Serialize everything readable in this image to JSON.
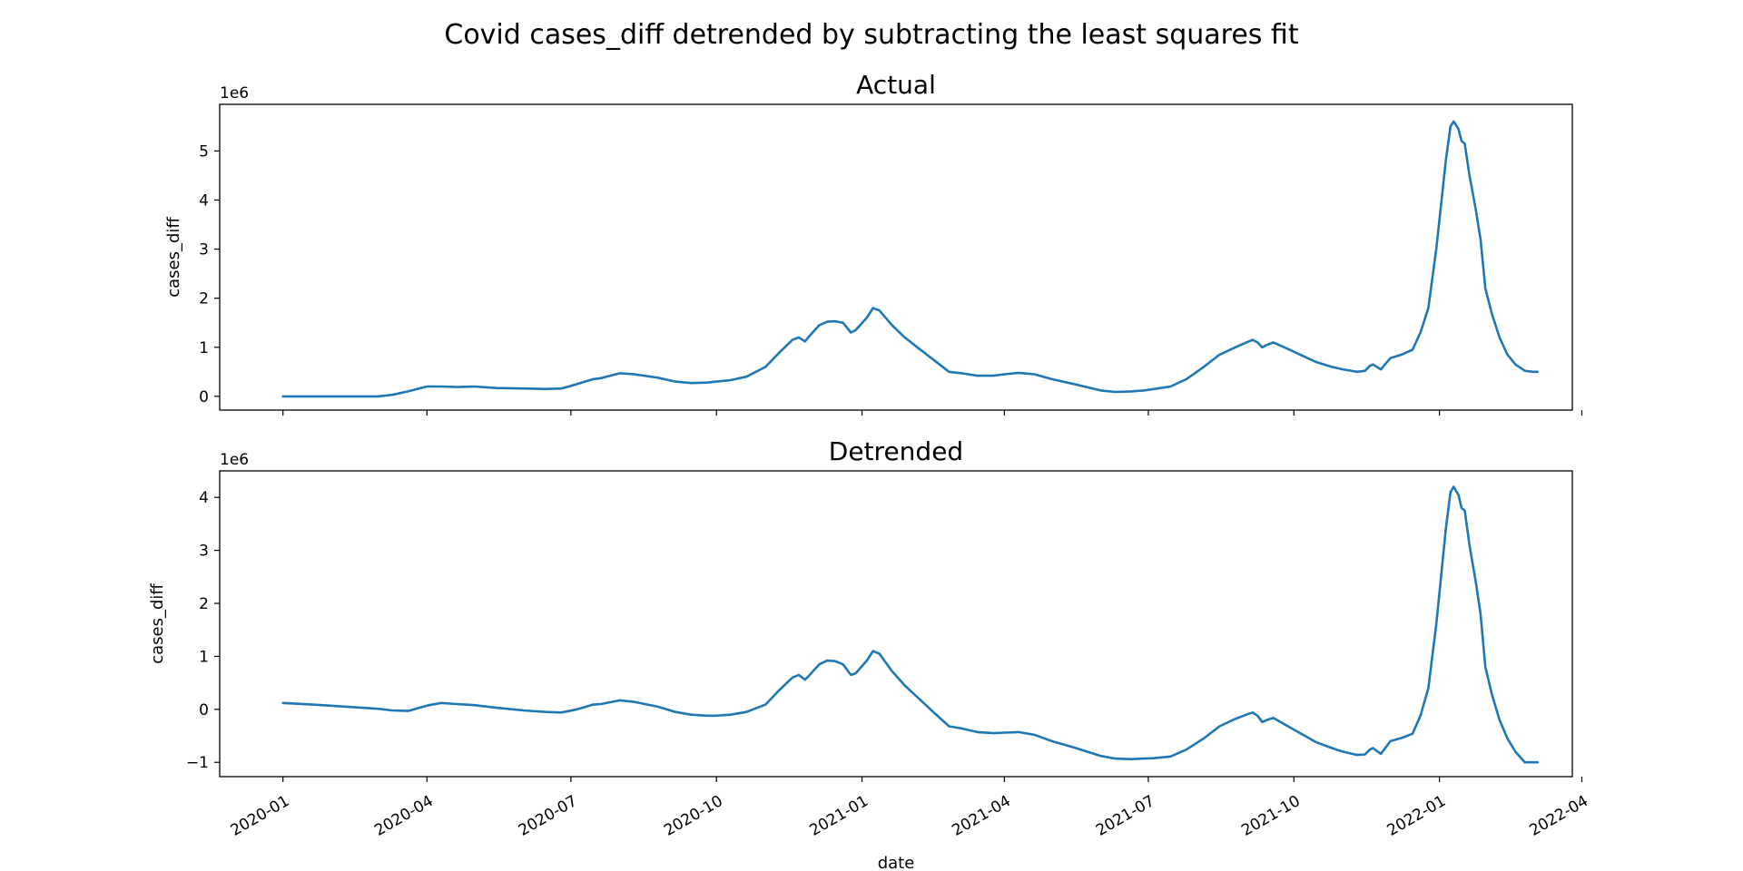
{
  "figure": {
    "title": "Covid cases_diff detrended by subtracting the least squares fit"
  },
  "chart_data": [
    {
      "type": "line",
      "title": "Actual",
      "xlabel": "",
      "ylabel": "cases_diff",
      "offset_label": "1e6",
      "y_multiplier": 1000000,
      "ylim": [
        -0.28,
        5.95
      ],
      "xlim": [
        "2019-11-22",
        "2022-03-26"
      ],
      "y_ticks": [
        0,
        1,
        2,
        3,
        4,
        5
      ],
      "y_tick_labels": [
        "0",
        "1",
        "2",
        "3",
        "4",
        "5"
      ],
      "x_ticks": [
        "2020-01-01",
        "2020-04-01",
        "2020-07-01",
        "2020-10-01",
        "2021-01-01",
        "2021-04-01",
        "2021-07-01",
        "2021-10-01",
        "2022-01-01",
        "2022-04-01"
      ],
      "x_tick_labels": [],
      "grid": false,
      "color": "#1f77b4",
      "series": [
        {
          "x": [
            "2020-01-01",
            "2020-01-20",
            "2020-02-10",
            "2020-03-01",
            "2020-03-10",
            "2020-03-20",
            "2020-04-01",
            "2020-04-10",
            "2020-04-20",
            "2020-05-01",
            "2020-05-15",
            "2020-06-01",
            "2020-06-15",
            "2020-06-25",
            "2020-07-05",
            "2020-07-15",
            "2020-07-20",
            "2020-08-01",
            "2020-08-10",
            "2020-08-25",
            "2020-09-05",
            "2020-09-15",
            "2020-09-25",
            "2020-10-01",
            "2020-10-10",
            "2020-10-20",
            "2020-11-01",
            "2020-11-10",
            "2020-11-18",
            "2020-11-22",
            "2020-11-26",
            "2020-11-28",
            "2020-12-05",
            "2020-12-10",
            "2020-12-15",
            "2020-12-20",
            "2020-12-25",
            "2020-12-28",
            "2021-01-04",
            "2021-01-08",
            "2021-01-12",
            "2021-01-20",
            "2021-01-28",
            "2021-02-05",
            "2021-02-15",
            "2021-02-25",
            "2021-03-05",
            "2021-03-15",
            "2021-03-25",
            "2021-04-01",
            "2021-04-10",
            "2021-04-20",
            "2021-05-01",
            "2021-05-15",
            "2021-06-01",
            "2021-06-10",
            "2021-06-20",
            "2021-06-28",
            "2021-07-05",
            "2021-07-15",
            "2021-07-25",
            "2021-08-05",
            "2021-08-15",
            "2021-08-25",
            "2021-09-01",
            "2021-09-05",
            "2021-09-08",
            "2021-09-11",
            "2021-09-14",
            "2021-09-18",
            "2021-09-25",
            "2021-10-05",
            "2021-10-15",
            "2021-10-25",
            "2021-11-01",
            "2021-11-10",
            "2021-11-15",
            "2021-11-18",
            "2021-11-20",
            "2021-11-25",
            "2021-12-01",
            "2021-12-08",
            "2021-12-15",
            "2021-12-20",
            "2021-12-25",
            "2021-12-30",
            "2022-01-02",
            "2022-01-05",
            "2022-01-08",
            "2022-01-10",
            "2022-01-13",
            "2022-01-15",
            "2022-01-17",
            "2022-01-20",
            "2022-01-24",
            "2022-01-27",
            "2022-01-30",
            "2022-02-03",
            "2022-02-08",
            "2022-02-13",
            "2022-02-18",
            "2022-02-24",
            "2022-03-01",
            "2022-03-04"
          ],
          "values": [
            0,
            0,
            0,
            0,
            0.03,
            0.1,
            0.2,
            0.2,
            0.19,
            0.2,
            0.17,
            0.16,
            0.15,
            0.16,
            0.25,
            0.35,
            0.37,
            0.47,
            0.45,
            0.38,
            0.3,
            0.27,
            0.28,
            0.3,
            0.33,
            0.4,
            0.6,
            0.9,
            1.15,
            1.2,
            1.12,
            1.2,
            1.45,
            1.52,
            1.53,
            1.5,
            1.3,
            1.35,
            1.6,
            1.8,
            1.75,
            1.45,
            1.2,
            1.0,
            0.75,
            0.5,
            0.47,
            0.42,
            0.42,
            0.45,
            0.48,
            0.45,
            0.35,
            0.25,
            0.12,
            0.09,
            0.1,
            0.12,
            0.15,
            0.2,
            0.35,
            0.6,
            0.85,
            1.0,
            1.1,
            1.15,
            1.1,
            1.0,
            1.05,
            1.1,
            1.0,
            0.85,
            0.7,
            0.6,
            0.55,
            0.5,
            0.52,
            0.62,
            0.65,
            0.55,
            0.78,
            0.85,
            0.95,
            1.3,
            1.8,
            3.0,
            3.9,
            4.8,
            5.5,
            5.6,
            5.45,
            5.2,
            5.15,
            4.5,
            3.8,
            3.2,
            2.2,
            1.7,
            1.2,
            0.85,
            0.65,
            0.52,
            0.5,
            0.5
          ]
        }
      ]
    },
    {
      "type": "line",
      "title": "Detrended",
      "xlabel": "date",
      "ylabel": "cases_diff",
      "offset_label": "1e6",
      "y_multiplier": 1000000,
      "ylim": [
        -1.27,
        4.5
      ],
      "xlim": [
        "2019-11-22",
        "2022-03-26"
      ],
      "y_ticks": [
        -1,
        0,
        1,
        2,
        3,
        4
      ],
      "y_tick_labels": [
        "−1",
        "0",
        "1",
        "2",
        "3",
        "4"
      ],
      "x_ticks": [
        "2020-01-01",
        "2020-04-01",
        "2020-07-01",
        "2020-10-01",
        "2021-01-01",
        "2021-04-01",
        "2021-07-01",
        "2021-10-01",
        "2022-01-01",
        "2022-04-01"
      ],
      "x_tick_labels": [
        "2020-01",
        "2020-04",
        "2020-07",
        "2020-10",
        "2021-01",
        "2021-04",
        "2021-07",
        "2021-10",
        "2022-01",
        "2022-04"
      ],
      "grid": false,
      "color": "#1f77b4",
      "series": [
        {
          "x": [
            "2020-01-01",
            "2020-01-20",
            "2020-02-10",
            "2020-03-01",
            "2020-03-10",
            "2020-03-20",
            "2020-04-01",
            "2020-04-10",
            "2020-04-20",
            "2020-05-01",
            "2020-05-15",
            "2020-06-01",
            "2020-06-15",
            "2020-06-25",
            "2020-07-05",
            "2020-07-15",
            "2020-07-20",
            "2020-08-01",
            "2020-08-10",
            "2020-08-25",
            "2020-09-05",
            "2020-09-15",
            "2020-09-25",
            "2020-10-01",
            "2020-10-10",
            "2020-10-20",
            "2020-11-01",
            "2020-11-10",
            "2020-11-18",
            "2020-11-22",
            "2020-11-26",
            "2020-11-28",
            "2020-12-05",
            "2020-12-10",
            "2020-12-15",
            "2020-12-20",
            "2020-12-25",
            "2020-12-28",
            "2021-01-04",
            "2021-01-08",
            "2021-01-12",
            "2021-01-20",
            "2021-01-28",
            "2021-02-05",
            "2021-02-15",
            "2021-02-25",
            "2021-03-05",
            "2021-03-15",
            "2021-03-25",
            "2021-04-01",
            "2021-04-10",
            "2021-04-20",
            "2021-05-01",
            "2021-05-15",
            "2021-06-01",
            "2021-06-10",
            "2021-06-20",
            "2021-06-28",
            "2021-07-05",
            "2021-07-15",
            "2021-07-25",
            "2021-08-05",
            "2021-08-15",
            "2021-08-25",
            "2021-09-01",
            "2021-09-05",
            "2021-09-08",
            "2021-09-11",
            "2021-09-14",
            "2021-09-18",
            "2021-09-25",
            "2021-10-05",
            "2021-10-15",
            "2021-10-25",
            "2021-11-01",
            "2021-11-10",
            "2021-11-15",
            "2021-11-18",
            "2021-11-20",
            "2021-11-25",
            "2021-12-01",
            "2021-12-08",
            "2021-12-15",
            "2021-12-20",
            "2021-12-25",
            "2021-12-30",
            "2022-01-02",
            "2022-01-05",
            "2022-01-08",
            "2022-01-10",
            "2022-01-13",
            "2022-01-15",
            "2022-01-17",
            "2022-01-20",
            "2022-01-24",
            "2022-01-27",
            "2022-01-30",
            "2022-02-03",
            "2022-02-08",
            "2022-02-13",
            "2022-02-18",
            "2022-02-24",
            "2022-03-01",
            "2022-03-04"
          ],
          "values": [
            0.12,
            0.09,
            0.05,
            0.01,
            -0.02,
            -0.03,
            0.07,
            0.12,
            0.1,
            0.08,
            0.03,
            -0.02,
            -0.05,
            -0.06,
            0.0,
            0.09,
            0.1,
            0.17,
            0.14,
            0.05,
            -0.05,
            -0.1,
            -0.12,
            -0.12,
            -0.1,
            -0.05,
            0.09,
            0.37,
            0.6,
            0.65,
            0.56,
            0.62,
            0.85,
            0.92,
            0.91,
            0.85,
            0.65,
            0.68,
            0.92,
            1.1,
            1.05,
            0.72,
            0.45,
            0.23,
            -0.05,
            -0.32,
            -0.36,
            -0.43,
            -0.45,
            -0.44,
            -0.43,
            -0.48,
            -0.6,
            -0.72,
            -0.88,
            -0.93,
            -0.94,
            -0.93,
            -0.92,
            -0.89,
            -0.76,
            -0.55,
            -0.32,
            -0.18,
            -0.1,
            -0.06,
            -0.12,
            -0.24,
            -0.2,
            -0.16,
            -0.28,
            -0.45,
            -0.62,
            -0.73,
            -0.8,
            -0.86,
            -0.85,
            -0.76,
            -0.73,
            -0.84,
            -0.6,
            -0.54,
            -0.46,
            -0.12,
            0.4,
            1.6,
            2.5,
            3.4,
            4.1,
            4.2,
            4.05,
            3.8,
            3.75,
            3.1,
            2.4,
            1.8,
            0.8,
            0.3,
            -0.2,
            -0.55,
            -0.8,
            -1.0,
            -1.0,
            -1.0
          ]
        }
      ]
    }
  ]
}
